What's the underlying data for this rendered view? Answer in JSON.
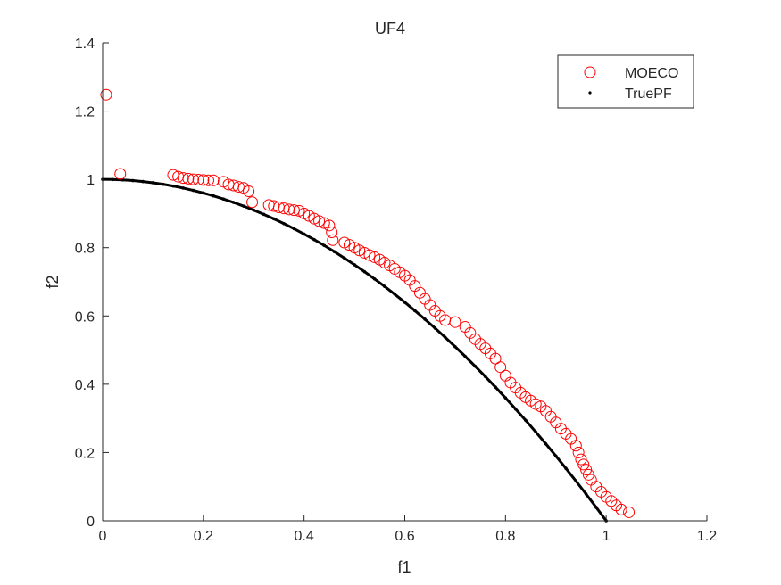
{
  "chart_data": {
    "type": "scatter",
    "title": "UF4",
    "xlabel": "f1",
    "ylabel": "f2",
    "xlim": [
      0,
      1.2
    ],
    "ylim": [
      0,
      1.4
    ],
    "xticks": [
      0,
      0.2,
      0.4,
      0.6,
      0.8,
      1,
      1.2
    ],
    "xtick_labels": [
      "0",
      "0.2",
      "0.4",
      "0.6",
      "0.8",
      "1",
      "1.2"
    ],
    "yticks": [
      0,
      0.2,
      0.4,
      0.6,
      0.8,
      1,
      1.2,
      1.4
    ],
    "ytick_labels": [
      "0",
      "0.2",
      "0.4",
      "0.6",
      "0.8",
      "1",
      "1.2",
      "1.4"
    ],
    "grid": false,
    "legend_position": "top-right",
    "series": [
      {
        "name": "MOECO",
        "marker": "circle-open",
        "color": "#ff0000",
        "points": [
          [
            0.007,
            1.248
          ],
          [
            0.035,
            1.016
          ],
          [
            0.14,
            1.013
          ],
          [
            0.15,
            1.008
          ],
          [
            0.16,
            1.004
          ],
          [
            0.17,
            1.002
          ],
          [
            0.18,
            1.0
          ],
          [
            0.19,
            0.999
          ],
          [
            0.2,
            0.998
          ],
          [
            0.21,
            0.997
          ],
          [
            0.22,
            0.997
          ],
          [
            0.24,
            0.993
          ],
          [
            0.25,
            0.985
          ],
          [
            0.26,
            0.982
          ],
          [
            0.27,
            0.978
          ],
          [
            0.28,
            0.975
          ],
          [
            0.29,
            0.965
          ],
          [
            0.297,
            0.933
          ],
          [
            0.33,
            0.925
          ],
          [
            0.34,
            0.922
          ],
          [
            0.35,
            0.918
          ],
          [
            0.36,
            0.915
          ],
          [
            0.37,
            0.912
          ],
          [
            0.38,
            0.91
          ],
          [
            0.39,
            0.908
          ],
          [
            0.4,
            0.9
          ],
          [
            0.41,
            0.893
          ],
          [
            0.42,
            0.885
          ],
          [
            0.43,
            0.878
          ],
          [
            0.44,
            0.872
          ],
          [
            0.45,
            0.865
          ],
          [
            0.455,
            0.845
          ],
          [
            0.457,
            0.822
          ],
          [
            0.48,
            0.815
          ],
          [
            0.49,
            0.808
          ],
          [
            0.5,
            0.8
          ],
          [
            0.51,
            0.792
          ],
          [
            0.52,
            0.785
          ],
          [
            0.53,
            0.778
          ],
          [
            0.54,
            0.772
          ],
          [
            0.55,
            0.765
          ],
          [
            0.56,
            0.756
          ],
          [
            0.57,
            0.748
          ],
          [
            0.58,
            0.738
          ],
          [
            0.59,
            0.728
          ],
          [
            0.6,
            0.718
          ],
          [
            0.61,
            0.705
          ],
          [
            0.62,
            0.688
          ],
          [
            0.63,
            0.668
          ],
          [
            0.64,
            0.65
          ],
          [
            0.65,
            0.632
          ],
          [
            0.66,
            0.615
          ],
          [
            0.67,
            0.6
          ],
          [
            0.68,
            0.588
          ],
          [
            0.7,
            0.582
          ],
          [
            0.72,
            0.568
          ],
          [
            0.73,
            0.55
          ],
          [
            0.74,
            0.532
          ],
          [
            0.75,
            0.518
          ],
          [
            0.76,
            0.505
          ],
          [
            0.77,
            0.49
          ],
          [
            0.78,
            0.475
          ],
          [
            0.79,
            0.45
          ],
          [
            0.8,
            0.425
          ],
          [
            0.81,
            0.405
          ],
          [
            0.82,
            0.39
          ],
          [
            0.83,
            0.375
          ],
          [
            0.84,
            0.362
          ],
          [
            0.85,
            0.352
          ],
          [
            0.86,
            0.342
          ],
          [
            0.87,
            0.335
          ],
          [
            0.88,
            0.322
          ],
          [
            0.89,
            0.305
          ],
          [
            0.9,
            0.288
          ],
          [
            0.91,
            0.27
          ],
          [
            0.92,
            0.255
          ],
          [
            0.93,
            0.24
          ],
          [
            0.94,
            0.22
          ],
          [
            0.945,
            0.2
          ],
          [
            0.95,
            0.18
          ],
          [
            0.955,
            0.165
          ],
          [
            0.96,
            0.15
          ],
          [
            0.965,
            0.135
          ],
          [
            0.97,
            0.12
          ],
          [
            0.98,
            0.1
          ],
          [
            0.99,
            0.085
          ],
          [
            1.0,
            0.07
          ],
          [
            1.01,
            0.058
          ],
          [
            1.02,
            0.045
          ],
          [
            1.03,
            0.033
          ],
          [
            1.045,
            0.025
          ]
        ]
      },
      {
        "name": "TruePF",
        "marker": "dot",
        "color": "#000000",
        "x": [
          0,
          0.02,
          0.04,
          0.06,
          0.08,
          0.1,
          0.12,
          0.14,
          0.16,
          0.18,
          0.2,
          0.22,
          0.24,
          0.26,
          0.28,
          0.3,
          0.32,
          0.34,
          0.36,
          0.38,
          0.4,
          0.42,
          0.44,
          0.46,
          0.48,
          0.5,
          0.52,
          0.54,
          0.56,
          0.58,
          0.6,
          0.62,
          0.64,
          0.66,
          0.68,
          0.7,
          0.72,
          0.74,
          0.76,
          0.78,
          0.8,
          0.82,
          0.84,
          0.86,
          0.88,
          0.9,
          0.92,
          0.94,
          0.96,
          0.98,
          1
        ],
        "y": [
          1,
          0.9996,
          0.9984,
          0.9964,
          0.9936,
          0.99,
          0.9856,
          0.9804,
          0.9744,
          0.9676,
          0.96,
          0.9516,
          0.9424,
          0.9324,
          0.9216,
          0.91,
          0.8976,
          0.8844,
          0.8704,
          0.8556,
          0.84,
          0.8236,
          0.8064,
          0.7884,
          0.7696,
          0.75,
          0.7296,
          0.7084,
          0.6864,
          0.6636,
          0.64,
          0.6156,
          0.5904,
          0.5644,
          0.5376,
          0.51,
          0.4816,
          0.4524,
          0.4224,
          0.3916,
          0.36,
          0.3276,
          0.2944,
          0.2604,
          0.2256,
          0.19,
          0.1536,
          0.1164,
          0.0784,
          0.0396,
          0
        ]
      }
    ]
  }
}
